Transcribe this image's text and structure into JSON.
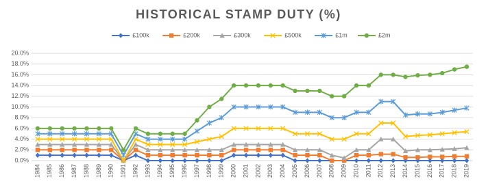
{
  "chart_data": {
    "type": "line",
    "title": "HISTORICAL STAMP DUTY (%)",
    "categories": [
      "1984",
      "1985",
      "1986",
      "1987",
      "1988",
      "1989",
      "1990",
      "1991",
      "1992",
      "1993",
      "1994",
      "1995",
      "1996",
      "1997",
      "1998",
      "1999",
      "2000",
      "2001",
      "2002",
      "2003",
      "2004",
      "2005",
      "2006",
      "2007",
      "2008",
      "2009",
      "2010",
      "2011",
      "2012",
      "2013",
      "2014",
      "2015",
      "2016",
      "2017",
      "2018",
      "2019"
    ],
    "ylim": [
      0,
      20
    ],
    "yticks": [
      {
        "value": 0,
        "label": "0.0%"
      },
      {
        "value": 2,
        "label": "2.0%"
      },
      {
        "value": 4,
        "label": "4.0%"
      },
      {
        "value": 6,
        "label": "6.0%"
      },
      {
        "value": 8,
        "label": "8.0%"
      },
      {
        "value": 10,
        "label": "10.0%"
      },
      {
        "value": 12,
        "label": "12.0%"
      },
      {
        "value": 14,
        "label": "14.0%"
      },
      {
        "value": 16,
        "label": "16.0%"
      },
      {
        "value": 18,
        "label": "18.0%"
      },
      {
        "value": 20,
        "label": "20.0%"
      }
    ],
    "grid": true,
    "legend": "top",
    "series": [
      {
        "name": "£100k",
        "color": "#4472c4",
        "marker": "diamond",
        "values": [
          1,
          1,
          1,
          1,
          1,
          1,
          1,
          0,
          1,
          0,
          0,
          0,
          0,
          0,
          0,
          0,
          1,
          1,
          1,
          1,
          1,
          0,
          0,
          0,
          0,
          0,
          0,
          0,
          0,
          0,
          0,
          0,
          0,
          0,
          0,
          0
        ]
      },
      {
        "name": "£200k",
        "color": "#ed7d31",
        "marker": "square",
        "values": [
          2,
          2,
          2,
          2,
          2,
          2,
          2,
          0,
          2,
          1,
          1,
          1,
          1,
          1,
          1,
          1,
          2,
          2,
          2,
          2,
          2,
          1,
          1,
          1,
          0,
          0,
          1,
          1,
          1.2,
          1.2,
          0.6,
          0.6,
          0.7,
          0.7,
          0.8,
          0.8
        ]
      },
      {
        "name": "£300k",
        "color": "#a5a5a5",
        "marker": "triangle",
        "values": [
          3,
          3,
          3,
          3,
          3,
          3,
          3,
          0,
          3,
          2,
          2,
          2,
          2,
          2,
          2,
          2,
          3,
          3,
          3,
          3,
          3,
          2,
          2,
          2,
          1,
          0.5,
          2,
          2,
          4,
          4,
          1.8,
          2,
          2,
          2.1,
          2.2,
          2.4
        ]
      },
      {
        "name": "£500k",
        "color": "#ffc000",
        "marker": "x",
        "values": [
          4,
          4,
          4,
          4,
          4,
          4,
          4,
          0,
          4,
          3,
          3,
          3,
          3,
          3.5,
          4,
          4.5,
          6,
          6,
          6,
          6,
          6,
          5,
          5,
          5,
          4,
          4,
          5,
          5,
          7,
          7,
          4.5,
          4.7,
          4.8,
          5,
          5.2,
          5.4
        ]
      },
      {
        "name": "£1m",
        "color": "#5b9bd5",
        "marker": "star",
        "values": [
          5,
          5,
          5,
          5,
          5,
          5,
          5,
          1,
          5,
          4,
          4,
          4,
          4,
          5.5,
          7,
          8,
          10,
          10,
          10,
          10,
          10,
          9,
          9,
          9,
          8,
          8,
          9,
          9,
          11,
          11,
          8.5,
          8.7,
          8.7,
          9,
          9.4,
          9.8
        ]
      },
      {
        "name": "£2m",
        "color": "#70ad47",
        "marker": "circle",
        "values": [
          6,
          6,
          6,
          6,
          6,
          6,
          6,
          2,
          6,
          5,
          5,
          5,
          5,
          7.5,
          10,
          11.5,
          14,
          14,
          14,
          14,
          14,
          13,
          13,
          13,
          12,
          12,
          14,
          14,
          16,
          16,
          15.6,
          15.9,
          16,
          16.3,
          17,
          17.5
        ]
      }
    ]
  }
}
